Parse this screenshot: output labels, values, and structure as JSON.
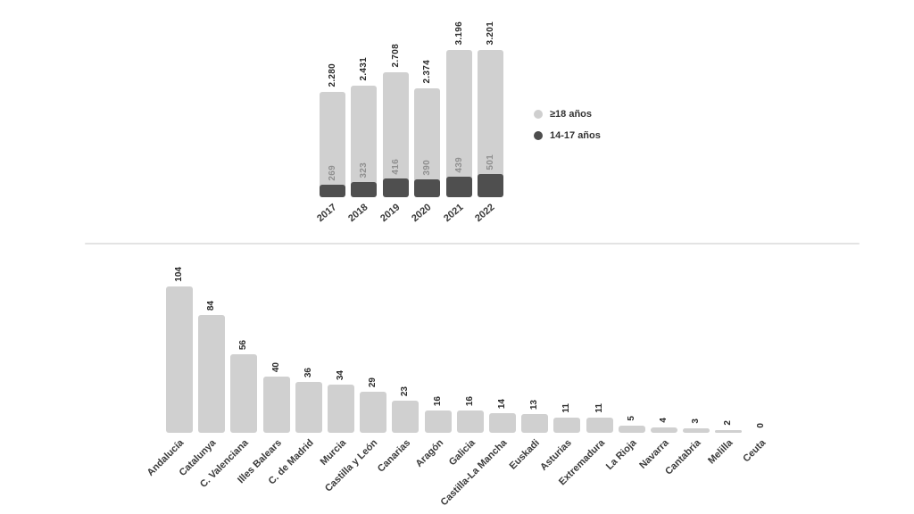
{
  "page": {
    "background": "#ffffff"
  },
  "colors": {
    "bar_light": "#d0d0d0",
    "bar_dark": "#4f4f4f",
    "value_text": "#2b2b2b",
    "inner_value_text": "#8f8f8f",
    "axis_text": "#3a3a3a",
    "divider": "#e3e3e3"
  },
  "legend": {
    "items": [
      {
        "label": "≥18 años",
        "color": "#cfcfcf"
      },
      {
        "label": "14-17 años",
        "color": "#4d4d4d"
      }
    ]
  },
  "chart_data": [
    {
      "type": "bar",
      "stacked": true,
      "title": "",
      "categories": [
        "2017",
        "2018",
        "2019",
        "2020",
        "2021",
        "2022"
      ],
      "totals": [
        2280,
        2431,
        2708,
        2374,
        3196,
        3201
      ],
      "total_labels": [
        "2.280",
        "2.431",
        "2.708",
        "2.374",
        "3.196",
        "3.201"
      ],
      "series": [
        {
          "name": "≥18 años",
          "color": "#d0d0d0"
        },
        {
          "name": "14-17 años",
          "color": "#4f4f4f",
          "values": [
            269,
            323,
            416,
            390,
            439,
            501
          ],
          "value_labels": [
            "269",
            "323",
            "416",
            "390",
            "439",
            "501"
          ]
        }
      ],
      "ylim": [
        0,
        3201
      ],
      "grid": false,
      "legend_position": "right",
      "value_label_rotation": 90,
      "category_label_rotation": 40
    },
    {
      "type": "bar",
      "title": "",
      "categories": [
        "Andalucía",
        "Catalunya",
        "C. Valenciana",
        "Illes Balears",
        "C. de Madrid",
        "Murcia",
        "Castilla y León",
        "Canarias",
        "Aragón",
        "Galicia",
        "Castilla-La Mancha",
        "Euskadi",
        "Asturias",
        "Extremadura",
        "La Rioja",
        "Navarra",
        "Cantabria",
        "Melilla",
        "Ceuta"
      ],
      "values": [
        104,
        84,
        56,
        40,
        36,
        34,
        29,
        23,
        16,
        16,
        14,
        13,
        11,
        11,
        5,
        4,
        3,
        2,
        0
      ],
      "value_labels": [
        "104",
        "84",
        "56",
        "40",
        "36",
        "34",
        "29",
        "23",
        "16",
        "16",
        "14",
        "13",
        "11",
        "11",
        "5",
        "4",
        "3",
        "2",
        "0"
      ],
      "bar_color": "#d0d0d0",
      "ylim": [
        0,
        104
      ],
      "grid": false,
      "legend_position": "none",
      "value_label_rotation": 90,
      "category_label_rotation": 45
    }
  ]
}
